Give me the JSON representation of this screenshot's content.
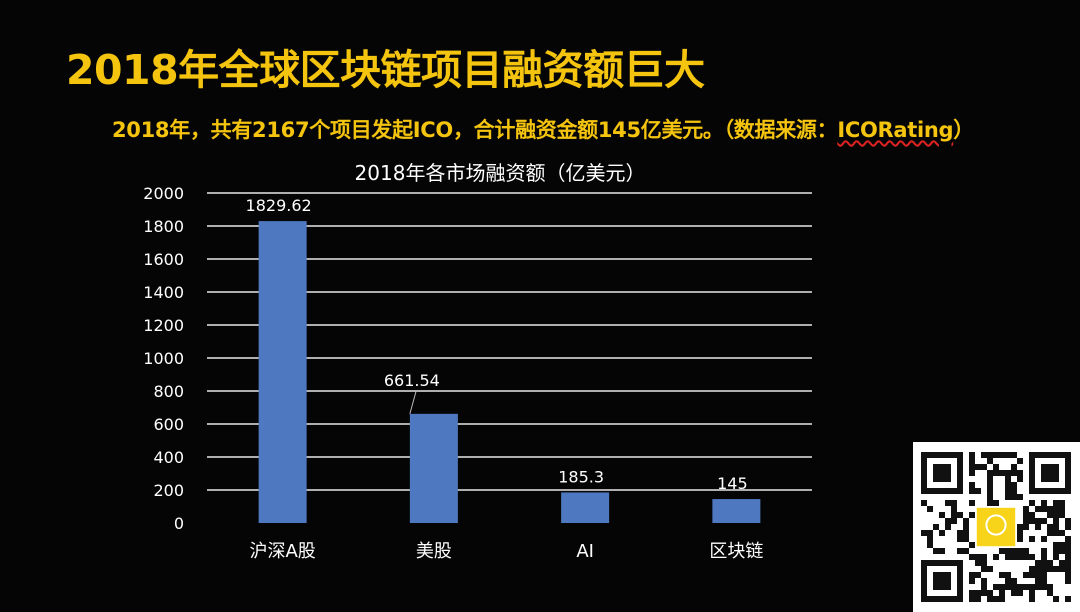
{
  "slide": {
    "title": "2018年全球区块链项目融资额巨大",
    "subtitle_main": "2018年，共有2167个项目发起ICO，合计融资金额145亿美元。（数据来源：",
    "subtitle_source": "ICORating",
    "subtitle_end": "）"
  },
  "qr": {
    "icon": "qr-code-icon",
    "logo_icon": "brand-logo-icon"
  },
  "colors": {
    "background": "#050505",
    "title": "#f4c40f",
    "bar": "#4e79c0",
    "text": "#ffffff",
    "grid": "#e8e8e8"
  },
  "chart_data": {
    "type": "bar",
    "title": "2018年各市场融资额（亿美元）",
    "categories": [
      "沪深A股",
      "美股",
      "AI",
      "区块链"
    ],
    "values": [
      1829.62,
      661.54,
      185.3,
      145
    ],
    "value_labels": [
      "1829.62",
      "661.54",
      "185.3",
      "145"
    ],
    "yticks": [
      "0",
      "200",
      "400",
      "600",
      "800",
      "1000",
      "1200",
      "1400",
      "1600",
      "1800",
      "2000"
    ],
    "ylim": [
      0,
      2000
    ],
    "grid": true,
    "legend": "none"
  }
}
